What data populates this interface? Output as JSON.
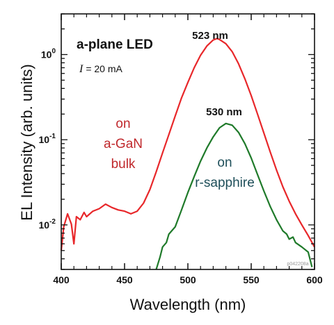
{
  "chart_data": {
    "type": "line",
    "title": "a-plane LED",
    "subtitle": "= 20 mA",
    "subtitle_symbol": "I",
    "xlabel": "Wavelength (nm)",
    "ylabel": "EL Intensity (arb. units)",
    "xlim": [
      400,
      600
    ],
    "ylim": [
      0.003,
      3
    ],
    "yscale": "log",
    "grid": false,
    "x_ticks": [
      "400",
      "450",
      "500",
      "550",
      "600"
    ],
    "y_ticks": [
      {
        "value": 0.01,
        "base": "10",
        "exp": "-2"
      },
      {
        "value": 0.1,
        "base": "10",
        "exp": "-1"
      },
      {
        "value": 1,
        "base": "10",
        "exp": "0"
      }
    ],
    "series": [
      {
        "name": "on a-GaN bulk",
        "color": "#e8272a",
        "x": [
          400,
          402,
          405,
          408,
          410,
          412,
          415,
          418,
          420,
          425,
          430,
          435,
          440,
          445,
          450,
          455,
          460,
          465,
          470,
          475,
          480,
          485,
          490,
          495,
          500,
          505,
          510,
          515,
          520,
          523,
          525,
          530,
          535,
          540,
          545,
          550,
          555,
          560,
          565,
          570,
          575,
          580,
          585,
          590,
          595,
          600
        ],
        "y": [
          0.005,
          0.0095,
          0.0135,
          0.0102,
          0.006,
          0.0125,
          0.0115,
          0.014,
          0.0125,
          0.0145,
          0.0155,
          0.0175,
          0.016,
          0.015,
          0.0145,
          0.0135,
          0.0145,
          0.018,
          0.026,
          0.042,
          0.07,
          0.115,
          0.19,
          0.31,
          0.47,
          0.7,
          0.98,
          1.26,
          1.48,
          1.54,
          1.5,
          1.34,
          1.08,
          0.78,
          0.52,
          0.33,
          0.2,
          0.12,
          0.072,
          0.044,
          0.028,
          0.019,
          0.0135,
          0.01,
          0.0075,
          0.0055
        ]
      },
      {
        "name": "on r-sapphire",
        "color": "#1f7a2a",
        "x": [
          475,
          478,
          480,
          483,
          485,
          490,
          495,
          500,
          505,
          510,
          515,
          520,
          525,
          530,
          535,
          540,
          545,
          550,
          555,
          560,
          565,
          570,
          575,
          578,
          580,
          583,
          585,
          590,
          595,
          598
        ],
        "y": [
          0.0028,
          0.0042,
          0.0055,
          0.0062,
          0.0078,
          0.0095,
          0.015,
          0.024,
          0.037,
          0.056,
          0.08,
          0.108,
          0.138,
          0.155,
          0.148,
          0.122,
          0.09,
          0.061,
          0.039,
          0.025,
          0.0165,
          0.0115,
          0.0085,
          0.0078,
          0.0068,
          0.0072,
          0.0062,
          0.0055,
          0.0048,
          0.0032
        ]
      }
    ],
    "annotations": {
      "peak_red": "523 nm",
      "peak_green": "530 nm",
      "label_red": [
        "on",
        "a-GaN",
        "bulk"
      ],
      "label_green": [
        "on",
        "r-sapphire"
      ],
      "watermark": "p042208a"
    }
  }
}
